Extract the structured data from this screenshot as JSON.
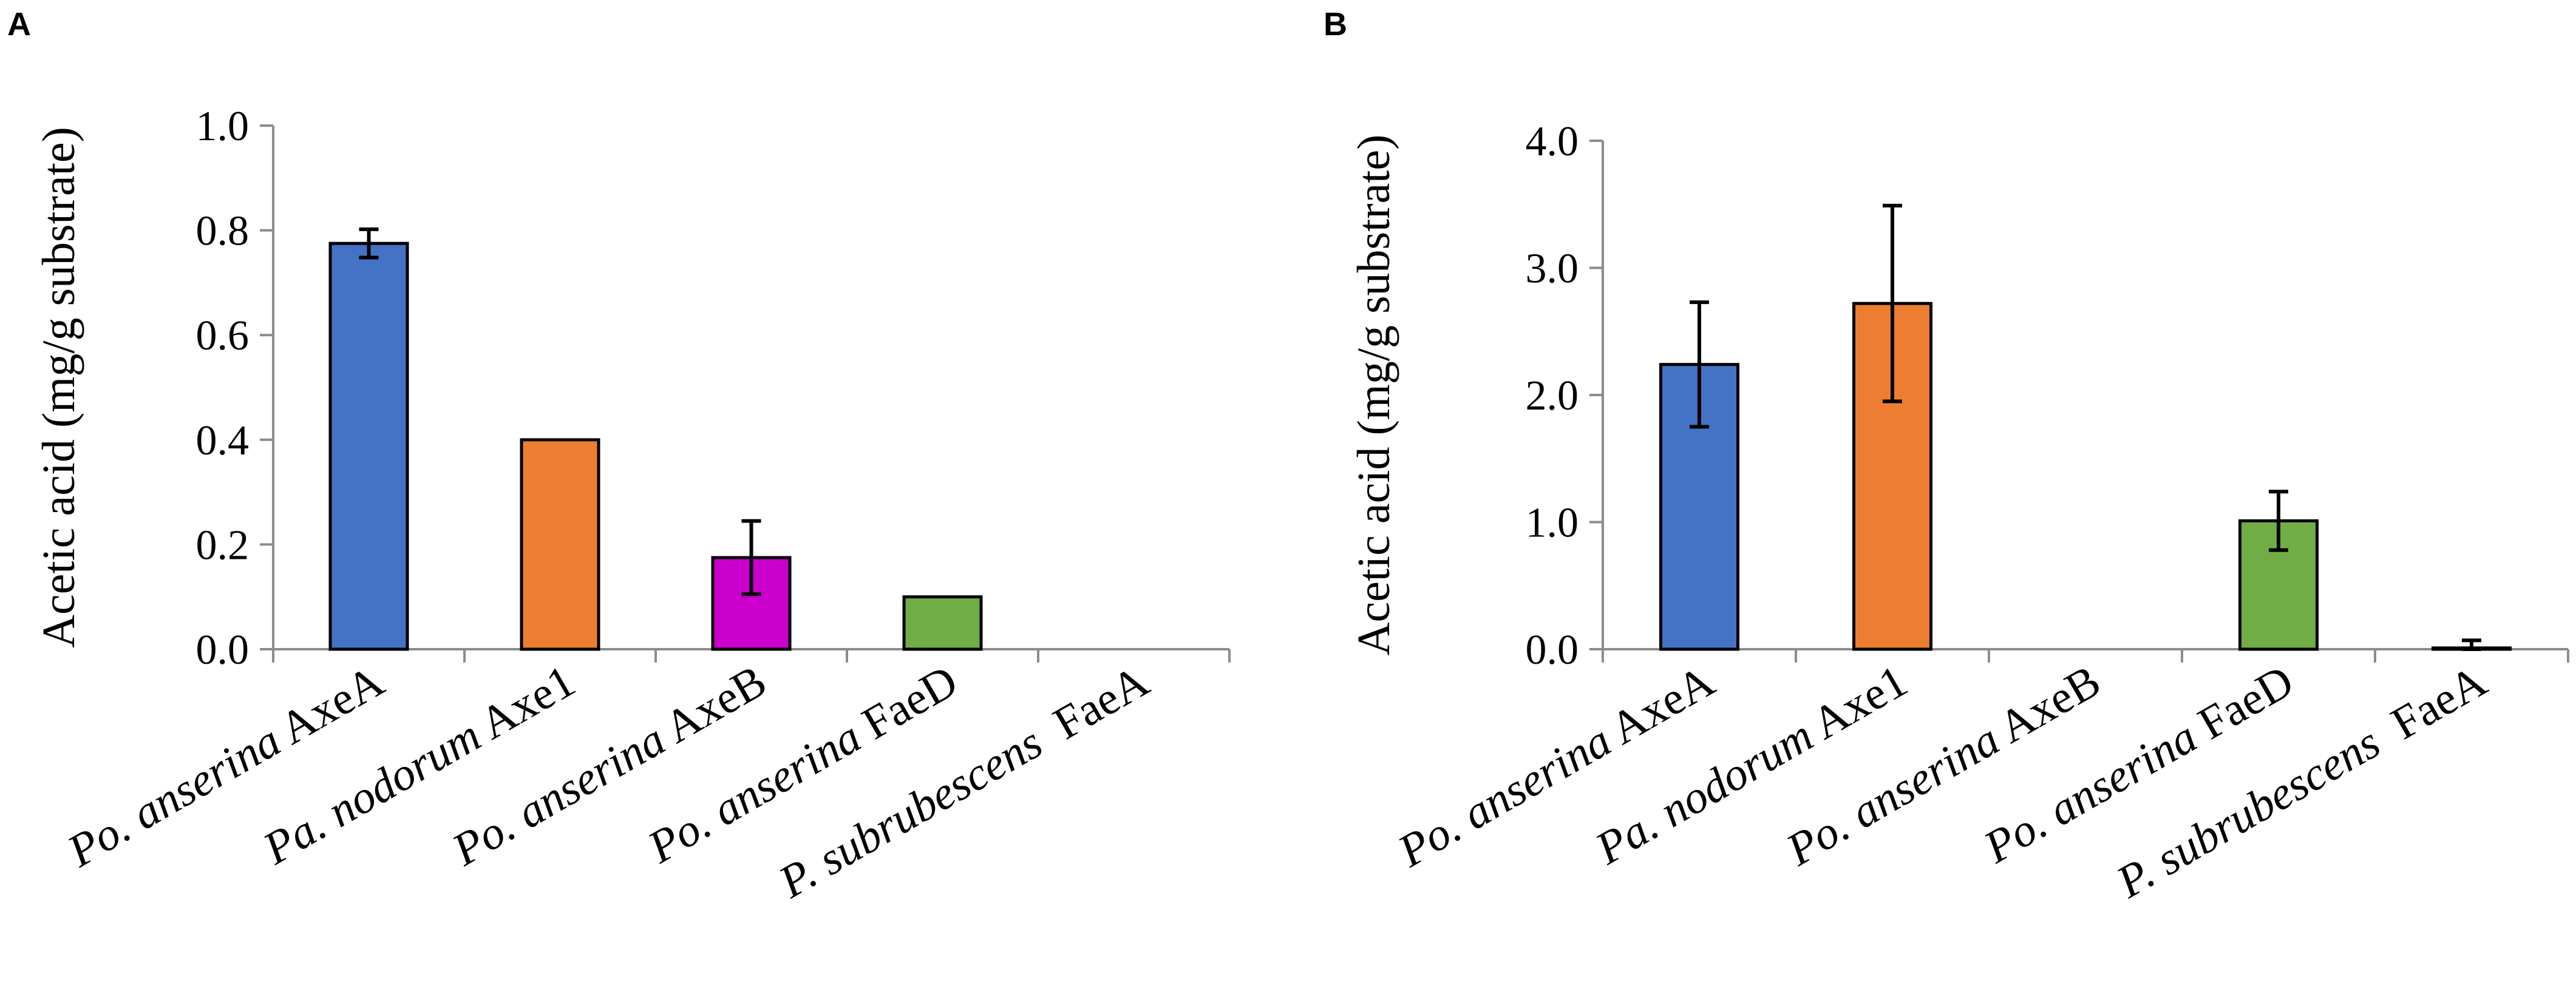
{
  "chart_data": [
    {
      "panel": "A",
      "type": "bar",
      "ylabel": "Acetic acid (mg/g substrate)",
      "ylim": [
        0,
        1.0
      ],
      "yticks": [
        "0.0",
        "0.2",
        "0.4",
        "0.6",
        "0.8",
        "1.0"
      ],
      "categories": [
        {
          "italic": "Po. anserina",
          "suffix": " AxeA",
          "value": 0.775,
          "error": 0.027,
          "color": "#4472c4"
        },
        {
          "italic": "Pa. nodorum",
          "suffix": " Axe1",
          "value": 0.4,
          "error": 0.0,
          "color": "#ed7d31"
        },
        {
          "italic": "Po. anserina",
          "suffix": " AxeB",
          "value": 0.175,
          "error": 0.07,
          "color": "#cc00cc"
        },
        {
          "italic": "Po. anserina",
          "suffix": " FaeD",
          "value": 0.1,
          "error": 0.0,
          "color": "#70ad47"
        },
        {
          "italic": "P. subrubescens",
          "suffix": "  FaeA",
          "value": 0.0,
          "error": 0.0,
          "color": "#4472c4"
        }
      ]
    },
    {
      "panel": "B",
      "type": "bar",
      "ylabel": "Acetic acid (mg/g substrate)",
      "ylim": [
        0,
        4.0
      ],
      "yticks": [
        "0.0",
        "1.0",
        "2.0",
        "3.0",
        "4.0"
      ],
      "categories": [
        {
          "italic": "Po. anserina",
          "suffix": " AxeA",
          "value": 2.24,
          "error": 0.49,
          "color": "#4472c4"
        },
        {
          "italic": "Pa. nodorum",
          "suffix": " Axe1",
          "value": 2.72,
          "error": 0.77,
          "color": "#ed7d31"
        },
        {
          "italic": "Po. anserina",
          "suffix": " AxeB",
          "value": 0.0,
          "error": 0.0,
          "color": "#cc00cc"
        },
        {
          "italic": "Po. anserina",
          "suffix": " FaeD",
          "value": 1.01,
          "error": 0.23,
          "color": "#70ad47"
        },
        {
          "italic": "P. subrubescens",
          "suffix": "  FaeA",
          "value": 0.01,
          "error": 0.06,
          "color": "#4472c4"
        }
      ]
    }
  ]
}
